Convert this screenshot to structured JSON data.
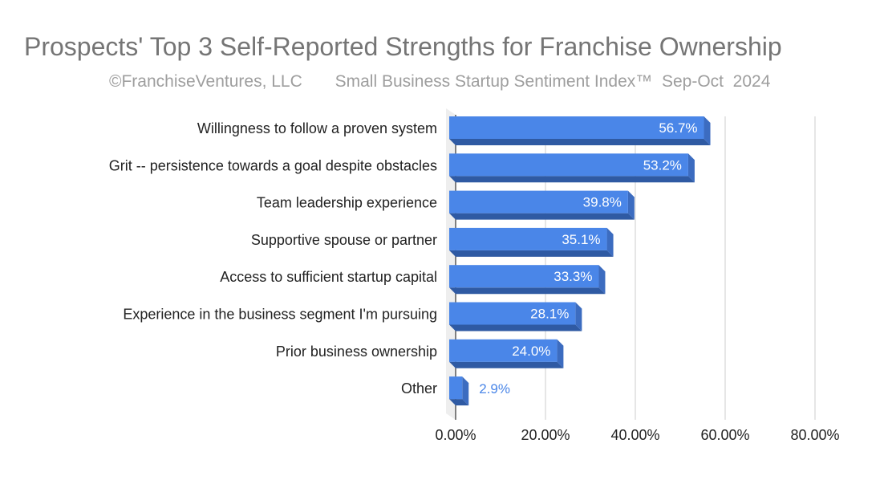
{
  "chart_data": {
    "type": "bar",
    "orientation": "horizontal",
    "title": "Prospects' Top 3 Self-Reported Strengths for Franchise Ownership",
    "subtitle": "©FranchiseVentures, LLC       Small Business Startup Sentiment Index™  Sep-Oct  2024",
    "categories": [
      "Willingness to follow a proven system",
      "Grit -- persistence towards a goal despite obstacles",
      "Team leadership experience",
      "Supportive spouse or partner",
      "Access to sufficient startup capital",
      "Experience in the business segment I'm pursuing",
      "Prior business ownership",
      "Other"
    ],
    "values": [
      56.7,
      53.2,
      39.8,
      35.1,
      33.3,
      28.1,
      24.0,
      2.9
    ],
    "data_labels": [
      "56.7%",
      "53.2%",
      "39.8%",
      "35.1%",
      "33.3%",
      "28.1%",
      "24.0%",
      "2.9%"
    ],
    "xticks": [
      "0.00%",
      "20.00%",
      "40.00%",
      "60.00%",
      "80.00%"
    ],
    "xlim": [
      0,
      80
    ],
    "grid": true,
    "bar_color": "#4a86e8",
    "bar_side_color": "#3c6cc0",
    "bar_bottom_color": "#2f5aa3"
  }
}
